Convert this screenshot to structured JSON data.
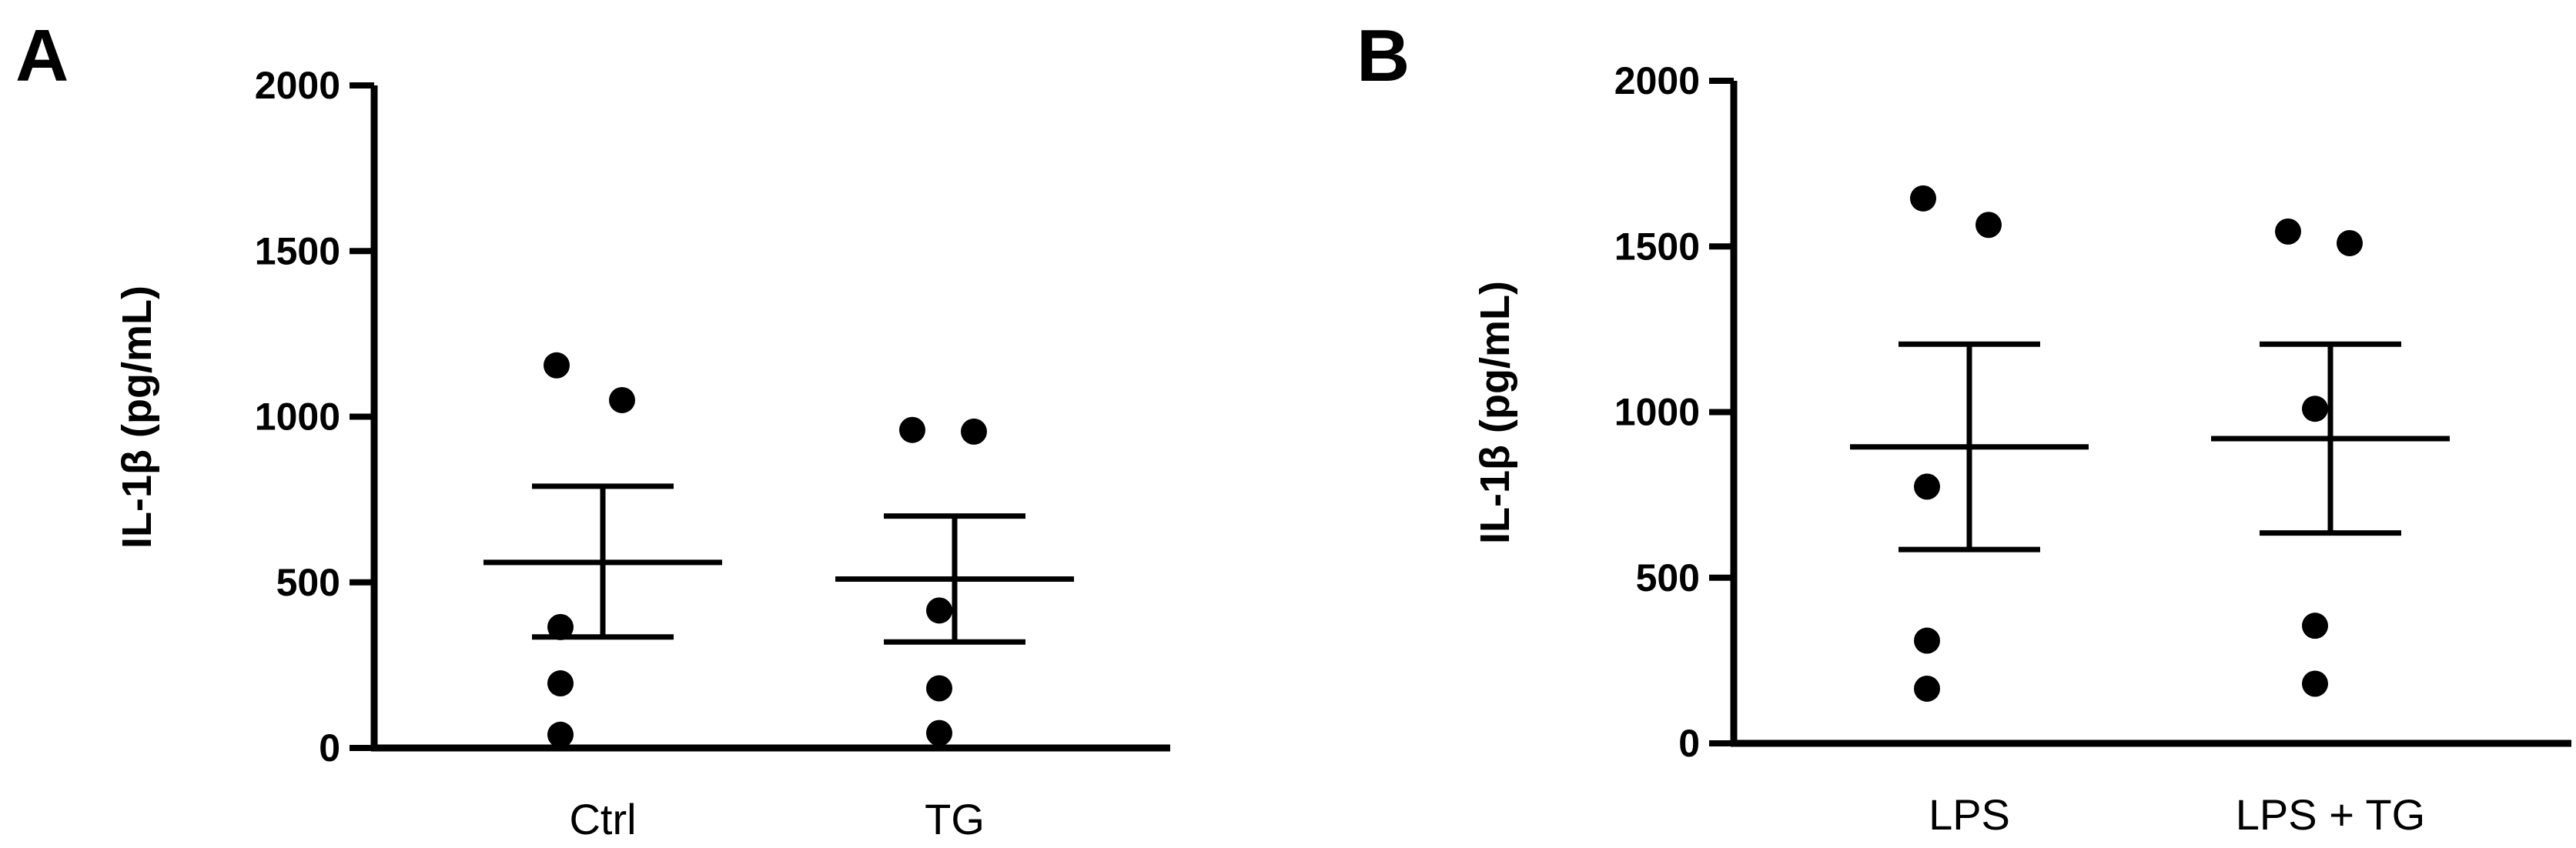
{
  "chart_data": [
    {
      "type": "scatter",
      "panel_label": "A",
      "ylabel": "IL-1β (pg/mL)",
      "ylim": [
        0,
        2000
      ],
      "yticks": [
        "0",
        "500",
        "1000",
        "1500",
        "2000"
      ],
      "categories": [
        "Ctrl",
        "TG"
      ],
      "points": [
        [
          1155,
          1050,
          365,
          195,
          40
        ],
        [
          960,
          955,
          415,
          180,
          45
        ]
      ],
      "mean": [
        560,
        510
      ],
      "sem_upper": [
        790,
        700
      ],
      "sem_lower": [
        335,
        320
      ],
      "color": "#000000"
    },
    {
      "type": "scatter",
      "panel_label": "B",
      "ylabel": "IL-1β (pg/mL)",
      "ylim": [
        0,
        2000
      ],
      "yticks": [
        "0",
        "500",
        "1000",
        "1500",
        "2000"
      ],
      "categories": [
        "LPS",
        "LPS + TG"
      ],
      "points": [
        [
          1645,
          1565,
          775,
          310,
          165
        ],
        [
          1545,
          1510,
          1010,
          355,
          180
        ]
      ],
      "mean": [
        895,
        920
      ],
      "sem_upper": [
        1205,
        1205
      ],
      "sem_lower": [
        585,
        635
      ],
      "color": "#000000"
    }
  ]
}
